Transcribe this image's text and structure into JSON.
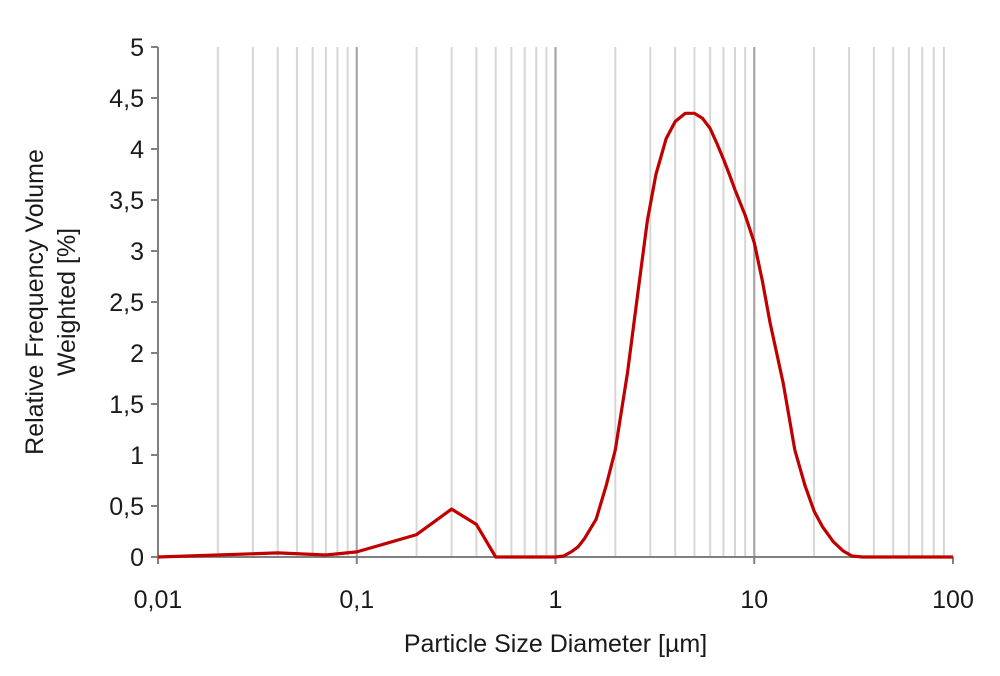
{
  "chart_data": {
    "type": "line",
    "xlabel": "Particle Size Diameter [µm]",
    "ylabel_lines": [
      "Relative Frequency Volume",
      "Weighted [%]"
    ],
    "x_scale": "log",
    "xlim": [
      0.01,
      100
    ],
    "ylim": [
      0,
      5
    ],
    "x_ticks": [
      0.01,
      0.1,
      1,
      10,
      100
    ],
    "x_tick_labels": [
      "0,01",
      "0,1",
      "1",
      "10",
      "100"
    ],
    "y_ticks": [
      0,
      0.5,
      1,
      1.5,
      2,
      2.5,
      3,
      3.5,
      4,
      4.5,
      5
    ],
    "y_tick_labels": [
      "0",
      "0,5",
      "1",
      "1,5",
      "2",
      "2,5",
      "3",
      "3,5",
      "4",
      "4,5",
      "5"
    ],
    "grid": "vertical-log",
    "line_color": "#c00000",
    "series": [
      {
        "x": [
          0.01,
          0.02,
          0.04,
          0.07,
          0.1,
          0.2,
          0.3,
          0.4,
          0.5,
          0.7,
          1.0,
          1.1,
          1.2,
          1.3,
          1.4,
          1.6,
          1.8,
          2.0,
          2.3,
          2.6,
          2.9,
          3.2,
          3.6,
          4.0,
          4.5,
          5.0,
          5.5,
          6.0,
          6.5,
          7.0,
          7.5,
          8.0,
          9.0,
          10.0,
          11.0,
          12.0,
          14.0,
          16.0,
          18.0,
          20.0,
          22.0,
          25.0,
          28.0,
          31.0,
          35.0,
          50.0,
          100.0
        ],
        "y": [
          0,
          0.02,
          0.04,
          0.02,
          0.05,
          0.22,
          0.47,
          0.32,
          0,
          0,
          0,
          0.01,
          0.05,
          0.1,
          0.18,
          0.37,
          0.7,
          1.05,
          1.8,
          2.6,
          3.3,
          3.75,
          4.1,
          4.27,
          4.35,
          4.35,
          4.3,
          4.2,
          4.05,
          3.9,
          3.75,
          3.6,
          3.35,
          3.08,
          2.7,
          2.3,
          1.7,
          1.05,
          0.7,
          0.45,
          0.3,
          0.15,
          0.06,
          0.01,
          0,
          0,
          0
        ]
      }
    ]
  }
}
